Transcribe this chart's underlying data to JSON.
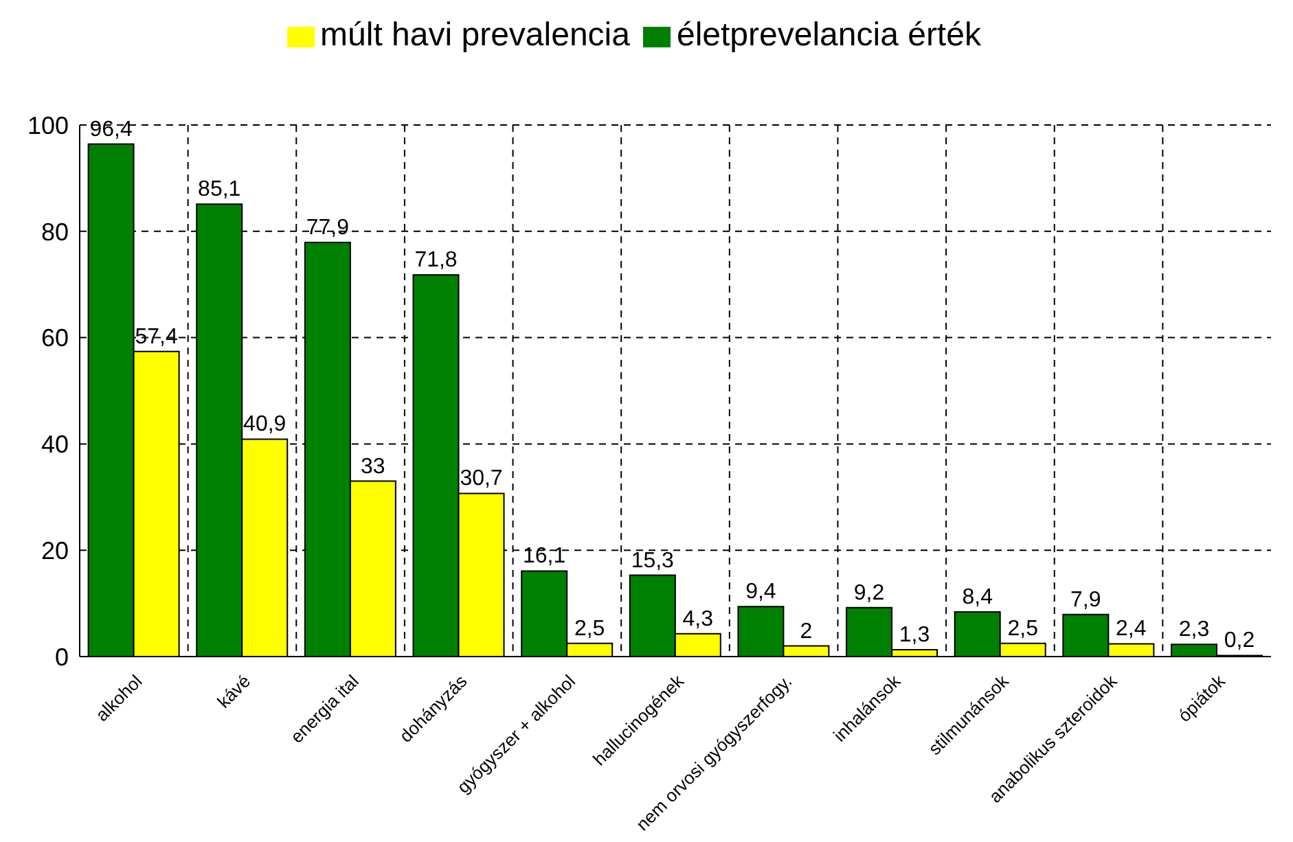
{
  "chart_data": {
    "type": "bar",
    "categories": [
      "alkohol",
      "kávé",
      "energia ital",
      "dohányzás",
      "gyógyszer + alkohol",
      "hallucinogének",
      "nem orvosi gyógyszerfogy.",
      "inhalánsok",
      "stilmunánsok",
      "anabolikus szteroidok",
      "ópiátok"
    ],
    "series": [
      {
        "name": "életprevelancia érték",
        "color": "#008000",
        "values": [
          96.4,
          85.1,
          77.9,
          71.8,
          16.1,
          15.3,
          9.4,
          9.2,
          8.4,
          7.9,
          2.3
        ],
        "value_labels": [
          "96,4",
          "85,1",
          "77,9",
          "71,8",
          "16,1",
          "15,3",
          "9,4",
          "9,2",
          "8,4",
          "7,9",
          "2,3"
        ]
      },
      {
        "name": "múlt havi prevalencia",
        "color": "#ffff00",
        "values": [
          57.4,
          40.9,
          33,
          30.7,
          2.5,
          4.3,
          2,
          1.3,
          2.5,
          2.4,
          0.2
        ],
        "value_labels": [
          "57,4",
          "40,9",
          "33",
          "30,7",
          "2,5",
          "4,3",
          "2",
          "1,3",
          "2,5",
          "2,4",
          "0,2"
        ]
      }
    ],
    "ylim": [
      0,
      100
    ],
    "yticks": [
      0,
      20,
      40,
      60,
      80,
      100
    ],
    "grid": true,
    "legend": "top"
  }
}
